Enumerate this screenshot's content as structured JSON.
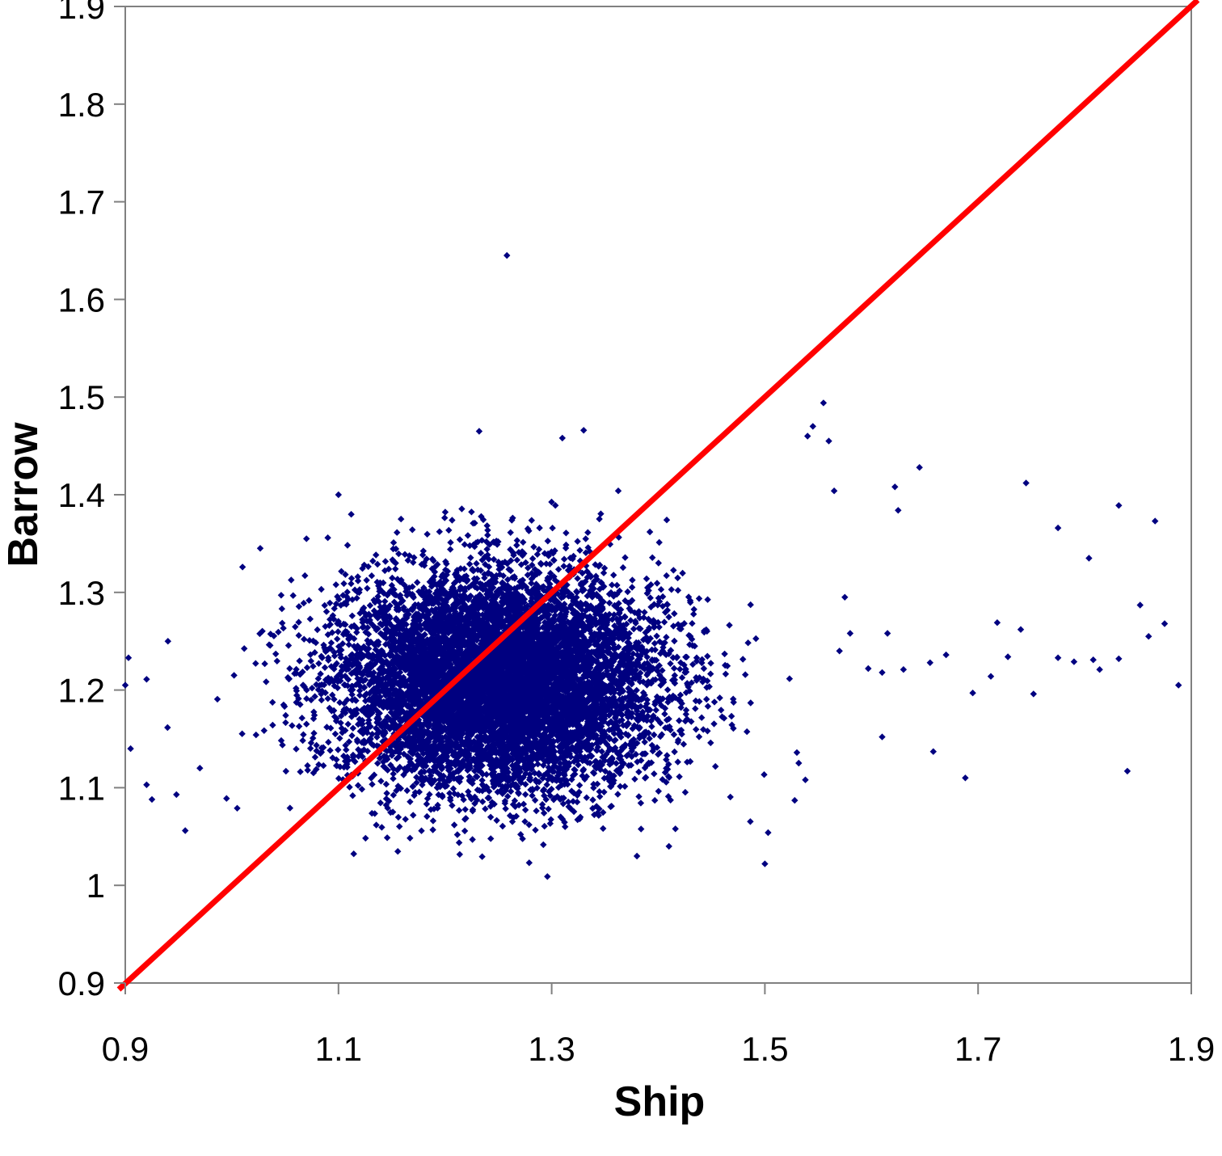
{
  "chart_data": {
    "type": "scatter",
    "title": "",
    "xlabel": "Ship",
    "ylabel": "Barrow",
    "xlim": [
      0.9,
      1.9
    ],
    "ylim": [
      0.9,
      1.9
    ],
    "x_ticks": [
      "0.9",
      "1.1",
      "1.3",
      "1.5",
      "1.7",
      "1.9"
    ],
    "y_ticks": [
      "0.9",
      "1",
      "1.1",
      "1.2",
      "1.3",
      "1.4",
      "1.5",
      "1.6",
      "1.7",
      "1.8",
      "1.9"
    ],
    "grid": false,
    "legend": "none",
    "colors": {
      "points": "#000080",
      "reference_line": "#ff0000",
      "axes": "#808080"
    },
    "series": [
      {
        "marker": "diamond",
        "cluster": {
          "center_x": 1.25,
          "center_y": 1.21,
          "sd_x": 0.075,
          "sd_y": 0.055,
          "approx_count": 9000
        },
        "outliers": [
          [
            1.258,
            1.645
          ],
          [
            1.645,
            1.428
          ],
          [
            1.745,
            1.412
          ],
          [
            1.832,
            1.389
          ],
          [
            1.866,
            1.373
          ],
          [
            1.775,
            1.366
          ],
          [
            1.804,
            1.335
          ],
          [
            1.852,
            1.287
          ],
          [
            1.875,
            1.268
          ],
          [
            1.74,
            1.262
          ],
          [
            1.718,
            1.269
          ],
          [
            1.615,
            1.258
          ],
          [
            1.86,
            1.255
          ],
          [
            1.67,
            1.236
          ],
          [
            1.728,
            1.234
          ],
          [
            1.79,
            1.229
          ],
          [
            1.832,
            1.232
          ],
          [
            1.808,
            1.231
          ],
          [
            1.775,
            1.233
          ],
          [
            1.655,
            1.228
          ],
          [
            1.597,
            1.222
          ],
          [
            1.61,
            1.218
          ],
          [
            1.63,
            1.221
          ],
          [
            1.712,
            1.214
          ],
          [
            1.814,
            1.221
          ],
          [
            1.888,
            1.205
          ],
          [
            1.695,
            1.197
          ],
          [
            1.752,
            1.196
          ],
          [
            1.61,
            1.152
          ],
          [
            1.658,
            1.137
          ],
          [
            1.688,
            1.11
          ],
          [
            1.84,
            1.117
          ],
          [
            1.625,
            1.384
          ],
          [
            1.622,
            1.408
          ],
          [
            1.565,
            1.404
          ],
          [
            1.56,
            1.455
          ],
          [
            1.555,
            1.494
          ],
          [
            1.545,
            1.47
          ],
          [
            1.54,
            1.46
          ],
          [
            1.575,
            1.295
          ],
          [
            1.58,
            1.258
          ],
          [
            1.57,
            1.24
          ],
          [
            1.528,
            1.087
          ],
          [
            1.538,
            1.108
          ],
          [
            1.5,
            1.022
          ],
          [
            1.503,
            1.054
          ],
          [
            1.296,
            1.009
          ],
          [
            1.232,
            1.465
          ],
          [
            1.31,
            1.458
          ],
          [
            1.33,
            1.466
          ],
          [
            1.07,
            1.355
          ],
          [
            1.09,
            1.356
          ],
          [
            1.112,
            1.38
          ],
          [
            1.01,
            1.326
          ],
          [
            0.903,
            1.233
          ],
          [
            0.92,
            1.211
          ],
          [
            0.94,
            1.25
          ],
          [
            0.905,
            1.14
          ],
          [
            0.925,
            1.088
          ],
          [
            0.948,
            1.093
          ],
          [
            0.92,
            1.103
          ],
          [
            0.995,
            1.089
          ],
          [
            1.005,
            1.079
          ],
          [
            0.97,
            1.12
          ],
          [
            0.9,
            1.205
          ],
          [
            0.89,
            1.195
          ],
          [
            1.41,
            1.04
          ],
          [
            1.38,
            1.03
          ],
          [
            1.1,
            1.4
          ]
        ]
      }
    ],
    "reference_line": {
      "label": "",
      "x": [
        0.9,
        1.9
      ],
      "y": [
        0.9,
        1.9
      ]
    }
  }
}
